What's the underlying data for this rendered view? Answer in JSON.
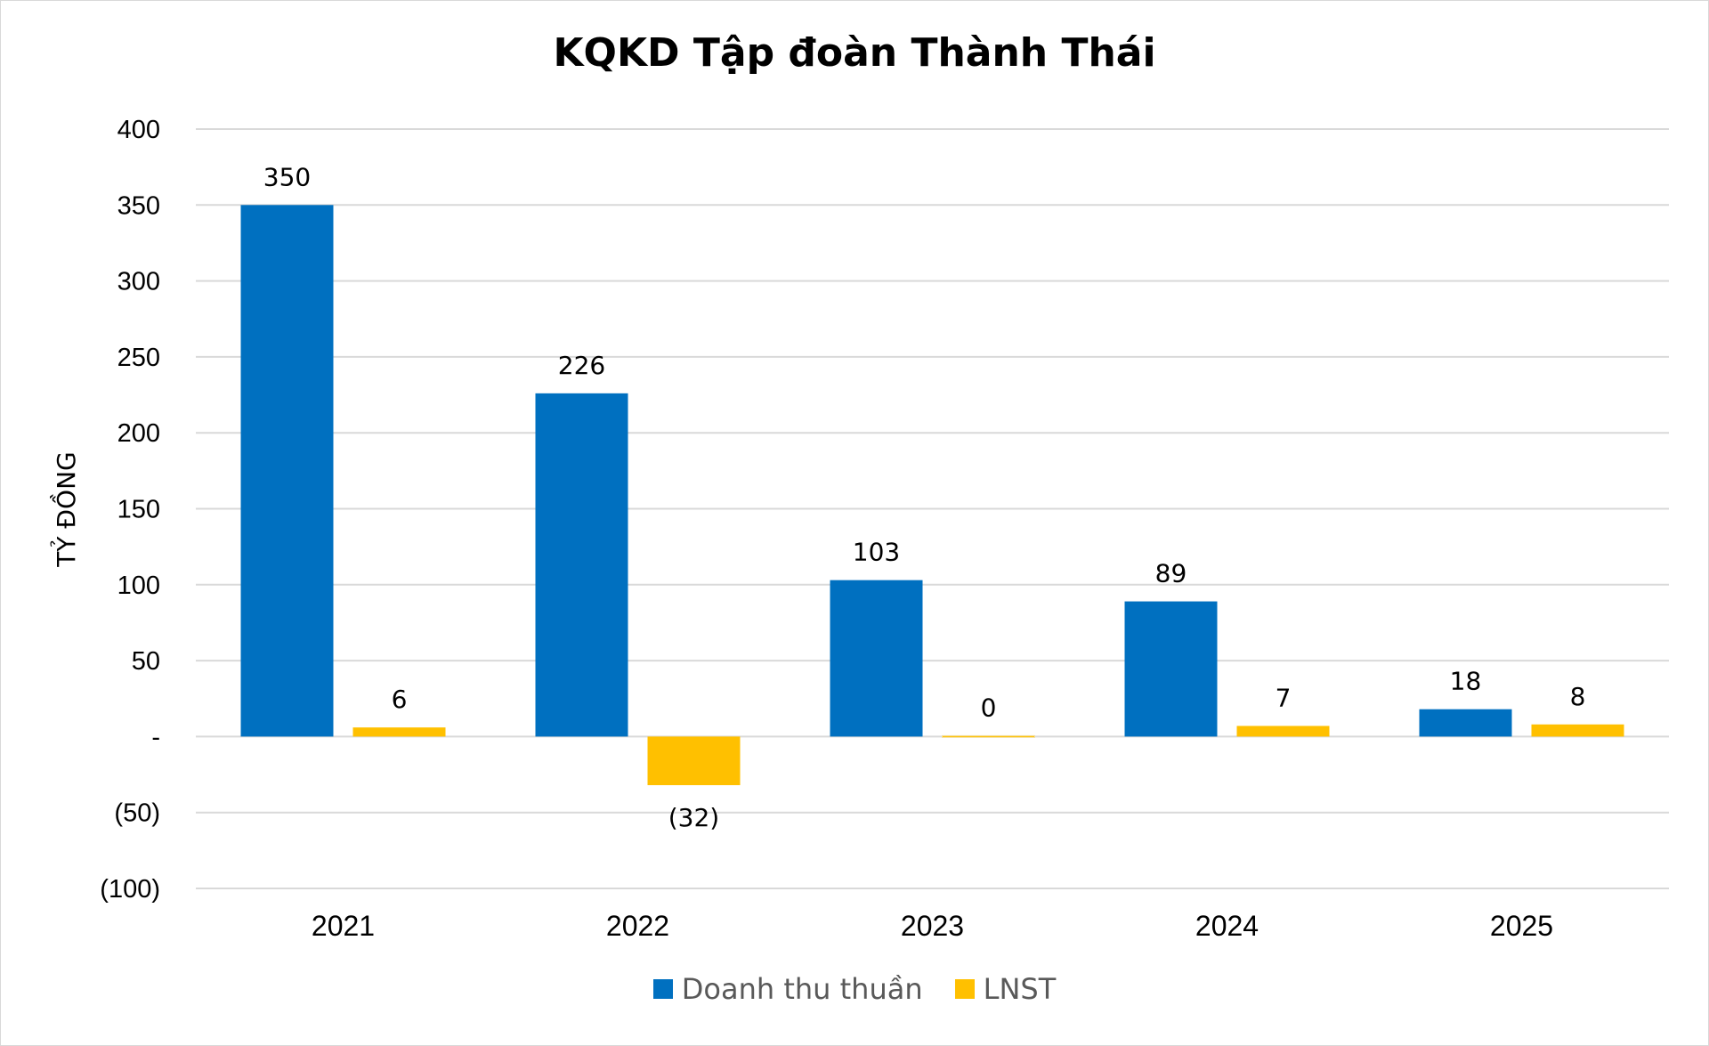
{
  "chart_data": {
    "type": "bar",
    "title": "KQKD Tập đoàn Thành Thái",
    "xlabel": "",
    "ylabel": "TỶ ĐỒNG",
    "ylim": [
      -100,
      400
    ],
    "ytick_step": 50,
    "ytick_labels": [
      "(100)",
      "(50)",
      "-",
      "50",
      "100",
      "150",
      "200",
      "250",
      "300",
      "350",
      "400"
    ],
    "grid": true,
    "legend_position": "bottom",
    "categories": [
      "2021",
      "2022",
      "2023",
      "2024",
      "2025"
    ],
    "series": [
      {
        "name": "Doanh thu thuần",
        "color": "#0070C0",
        "values": [
          350,
          226,
          103,
          89,
          18
        ],
        "labels": [
          "350",
          "226",
          "103",
          "89",
          "18"
        ]
      },
      {
        "name": "LNST",
        "color": "#FFC000",
        "values": [
          6,
          -32,
          0,
          7,
          8
        ],
        "labels": [
          "6",
          "(32)",
          "0",
          "7",
          "8"
        ]
      }
    ]
  }
}
